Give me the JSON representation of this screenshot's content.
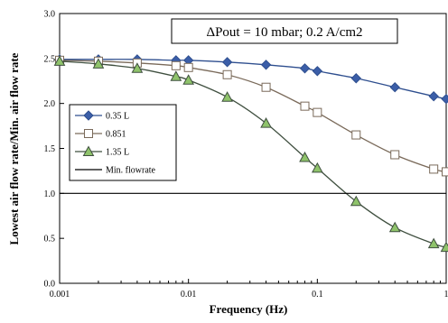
{
  "chart_data": {
    "type": "line",
    "title": "ΔPout = 10 mbar; 0.2 A/cm2",
    "xlabel": "Frequency (Hz)",
    "ylabel": "Lowest air flow rate/Min. air flow rate",
    "x_scale": "log",
    "xlim": [
      0.001,
      1
    ],
    "ylim": [
      0,
      3.0
    ],
    "x_ticks": [
      0.001,
      0.01,
      0.1,
      1
    ],
    "x_tick_labels": [
      "0.001",
      "0.01",
      "0.1",
      "1"
    ],
    "y_ticks": [
      0,
      0.5,
      1.0,
      1.5,
      2.0,
      2.5,
      3.0
    ],
    "y_tick_labels": [
      "0.0",
      "0.5",
      "1.0",
      "1.5",
      "2.0",
      "2.5",
      "3.0"
    ],
    "grid": false,
    "legend_position": "center-left",
    "series": [
      {
        "name": "0.35 L",
        "marker": "diamond",
        "color": "#2f4f8f",
        "marker_fill": "#3b5ea8",
        "x": [
          0.001,
          0.002,
          0.004,
          0.008,
          0.01,
          0.02,
          0.04,
          0.08,
          0.1,
          0.2,
          0.4,
          0.8,
          1.0
        ],
        "y": [
          2.49,
          2.49,
          2.49,
          2.48,
          2.48,
          2.46,
          2.43,
          2.39,
          2.36,
          2.28,
          2.18,
          2.08,
          2.05
        ]
      },
      {
        "name": "0.851",
        "marker": "square",
        "color": "#7a6a5a",
        "marker_fill": "#ffffff",
        "x": [
          0.001,
          0.002,
          0.004,
          0.008,
          0.01,
          0.02,
          0.04,
          0.08,
          0.1,
          0.2,
          0.4,
          0.8,
          1.0
        ],
        "y": [
          2.48,
          2.47,
          2.45,
          2.42,
          2.4,
          2.32,
          2.18,
          1.97,
          1.9,
          1.65,
          1.43,
          1.27,
          1.24
        ]
      },
      {
        "name": "1.35 L",
        "marker": "triangle",
        "color": "#3f4f3f",
        "marker_fill": "#8fc36b",
        "x": [
          0.001,
          0.002,
          0.004,
          0.008,
          0.01,
          0.02,
          0.04,
          0.08,
          0.1,
          0.2,
          0.4,
          0.8,
          1.0
        ],
        "y": [
          2.47,
          2.44,
          2.39,
          2.3,
          2.26,
          2.07,
          1.78,
          1.4,
          1.28,
          0.91,
          0.62,
          0.44,
          0.4
        ]
      },
      {
        "name": "Min. flowrate",
        "marker": "none",
        "color": "#000000",
        "x": [
          0.001,
          1.0
        ],
        "y": [
          1.0,
          1.0
        ]
      }
    ]
  }
}
